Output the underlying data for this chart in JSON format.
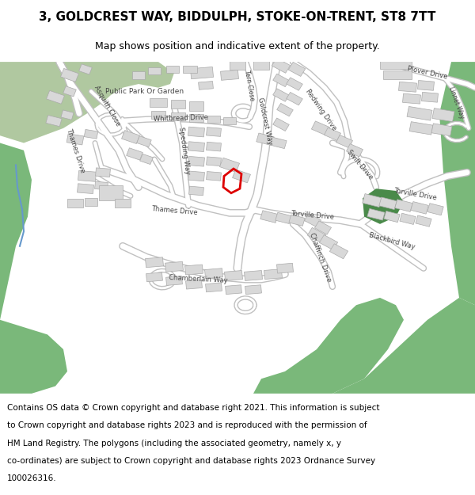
{
  "title": "3, GOLDCREST WAY, BIDDULPH, STOKE-ON-TRENT, ST8 7TT",
  "subtitle": "Map shows position and indicative extent of the property.",
  "footer_lines": [
    "Contains OS data © Crown copyright and database right 2021. This information is subject",
    "to Crown copyright and database rights 2023 and is reproduced with the permission of",
    "HM Land Registry. The polygons (including the associated geometry, namely x, y",
    "co-ordinates) are subject to Crown copyright and database rights 2023 Ordnance Survey",
    "100026316."
  ],
  "map_bg": "#f8f8f8",
  "road_outline_color": "#c0c0c0",
  "road_fill_color": "#ffffff",
  "building_color": "#d8d8d8",
  "building_edge": "#aaaaaa",
  "green_dark": "#7ab87a",
  "green_light": "#a8c8a0",
  "park_green": "#b0c8a0",
  "red_color": "#dd0000",
  "blue_line": "#6699cc",
  "label_color": "#444444",
  "title_fontsize": 11,
  "subtitle_fontsize": 9,
  "footer_fontsize": 7.5,
  "label_fontsize": 6
}
